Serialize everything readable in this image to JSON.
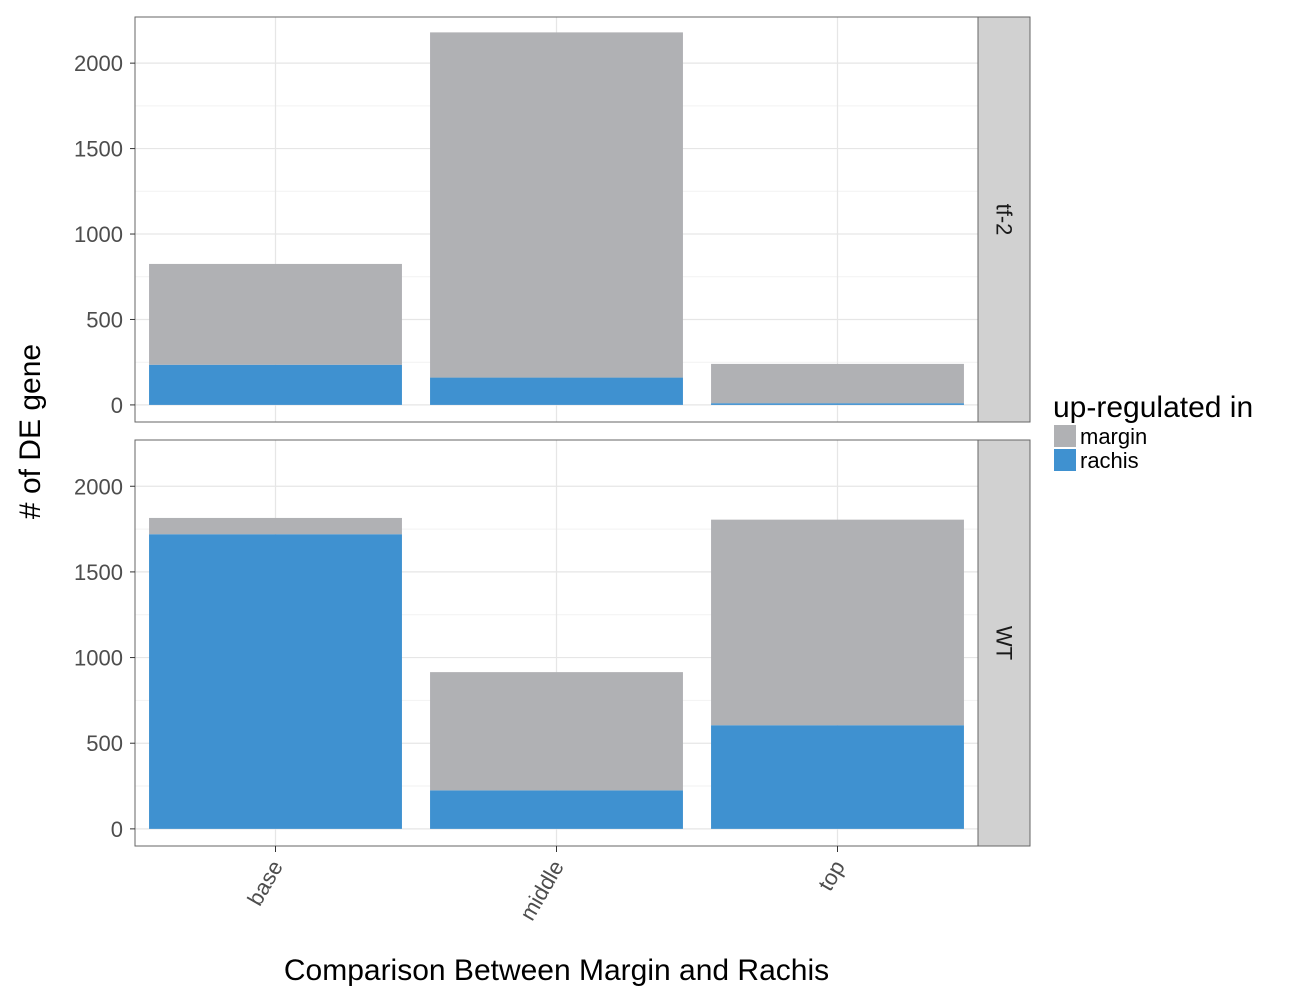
{
  "chart_data": {
    "type": "bar",
    "stacked": true,
    "facet_layout": "rows",
    "categories": [
      "base",
      "middle",
      "top"
    ],
    "xlabel": "Comparison Between Margin and Rachis",
    "ylabel": "# of DE gene",
    "ylim": [
      -100,
      2270
    ],
    "yticks": [
      0,
      500,
      1000,
      1500,
      2000
    ],
    "grid": true,
    "legend": {
      "title": "up-regulated in",
      "position": "right",
      "items": [
        {
          "label": "margin",
          "color": "#b0b1b4"
        },
        {
          "label": "rachis",
          "color": "#3f91d0"
        }
      ]
    },
    "series": [
      {
        "name": "margin",
        "color": "#b0b1b4"
      },
      {
        "name": "rachis",
        "color": "#3f91d0"
      }
    ],
    "panels": [
      {
        "label": "tf-2",
        "values": {
          "margin": [
            590,
            2020,
            230
          ],
          "rachis": [
            235,
            160,
            10
          ]
        }
      },
      {
        "label": "WT",
        "values": {
          "margin": [
            95,
            690,
            1200
          ],
          "rachis": [
            1720,
            225,
            605
          ]
        }
      }
    ]
  }
}
